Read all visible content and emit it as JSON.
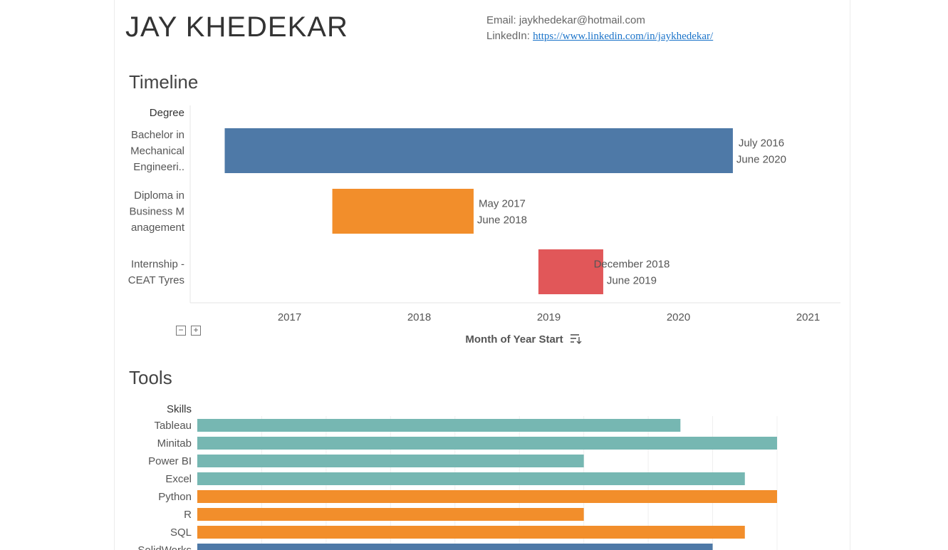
{
  "header": {
    "name": "JAY KHEDEKAR",
    "email_label": "Email: jaykhedekar@hotmail.com",
    "linkedin_prefix": "LinkedIn:",
    "linkedin_url": "https://www.linkedin.com/in/jaykhedekar/"
  },
  "timeline": {
    "title": "Timeline",
    "row_header": "Degree",
    "xlabel": "Month of Year Start",
    "sort_icon": "sort-icon",
    "zoom_out": "−",
    "zoom_in": "+"
  },
  "tools": {
    "title": "Tools",
    "row_header": "Skills"
  },
  "chart_data": [
    {
      "type": "bar",
      "orientation": "horizontal-gantt",
      "xlabel": "Month of Year Start",
      "xlim": [
        2016.25,
        2021.25
      ],
      "x_ticks": [
        "2017",
        "2018",
        "2019",
        "2020",
        "2021"
      ],
      "rows": [
        {
          "label_lines": [
            "Bachelor in",
            "Mechanical",
            "Engineeri.."
          ],
          "start": 2016.5,
          "end": 2020.42,
          "start_label": "July 2016",
          "end_label": "June 2020",
          "color": "#4e79a7"
        },
        {
          "label_lines": [
            "Diploma in",
            "Business M",
            "anagement"
          ],
          "start": 2017.33,
          "end": 2018.42,
          "start_label": "May 2017",
          "end_label": "June 2018",
          "color": "#f28e2b"
        },
        {
          "label_lines": [
            "Internship -",
            "CEAT Tyres"
          ],
          "start": 2018.92,
          "end": 2019.42,
          "start_label": "December 2018",
          "end_label": "June 2019",
          "color": "#e15759"
        }
      ]
    },
    {
      "type": "bar",
      "orientation": "horizontal",
      "xlim": [
        0,
        9
      ],
      "categories": [
        "Tableau",
        "Minitab",
        "Power BI",
        "Excel",
        "Python",
        "R",
        "SQL",
        "SolidWorks"
      ],
      "values": [
        7.5,
        9,
        6,
        8.5,
        9,
        6,
        8.5,
        8
      ],
      "colors": [
        "#76b7b2",
        "#76b7b2",
        "#76b7b2",
        "#76b7b2",
        "#f28e2b",
        "#f28e2b",
        "#f28e2b",
        "#4e79a7"
      ]
    }
  ]
}
